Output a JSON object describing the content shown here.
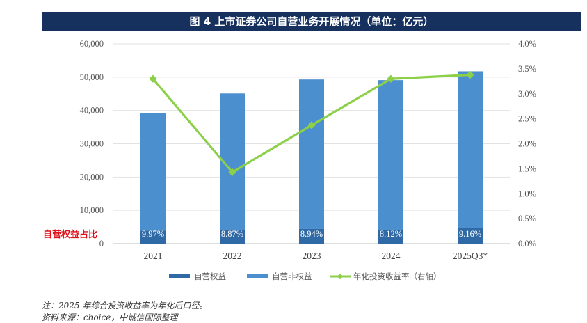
{
  "title": "图 4 上市证券公司自营业务开展情况（单位：亿元）",
  "ratio_label": "自营权益占比",
  "note": "注：2025 年综合投资收益率为年化后口径。",
  "source": "资料来源：choice，中诚信国际整理",
  "colors": {
    "title_bg": "#16315e",
    "equity": "#2f6aa6",
    "non_equity": "#4b8fcf",
    "line": "#8cd04a",
    "red_label": "#e0121b"
  },
  "chart_data": {
    "type": "bar",
    "categories": [
      "2021",
      "2022",
      "2023",
      "2024",
      "2025Q3*"
    ],
    "series": [
      {
        "name": "自营权益",
        "type": "bar",
        "axis": "left",
        "values": [
          3900,
          4000,
          4400,
          4000,
          4750
        ]
      },
      {
        "name": "自营非权益",
        "type": "bar",
        "axis": "left",
        "values": [
          35300,
          41100,
          44900,
          45100,
          47000
        ]
      },
      {
        "name": "年化投资收益率（右轴）",
        "type": "line",
        "axis": "right",
        "values": [
          3.3,
          1.43,
          2.37,
          3.3,
          3.38
        ]
      }
    ],
    "bar_labels": [
      "9.97%",
      "8.87%",
      "8.94%",
      "8.12%",
      "9.16%"
    ],
    "y_left": {
      "min": 0,
      "max": 60000,
      "ticks": [
        "0",
        "10,000",
        "20,000",
        "30,000",
        "40,000",
        "50,000",
        "60,000"
      ]
    },
    "y_right": {
      "min": 0,
      "max": 4,
      "ticks": [
        "0.0%",
        "0.5%",
        "1.0%",
        "1.5%",
        "2.0%",
        "2.5%",
        "3.0%",
        "3.5%",
        "4.0%"
      ]
    },
    "stacked": true,
    "legend_position": "bottom",
    "grid": true
  }
}
